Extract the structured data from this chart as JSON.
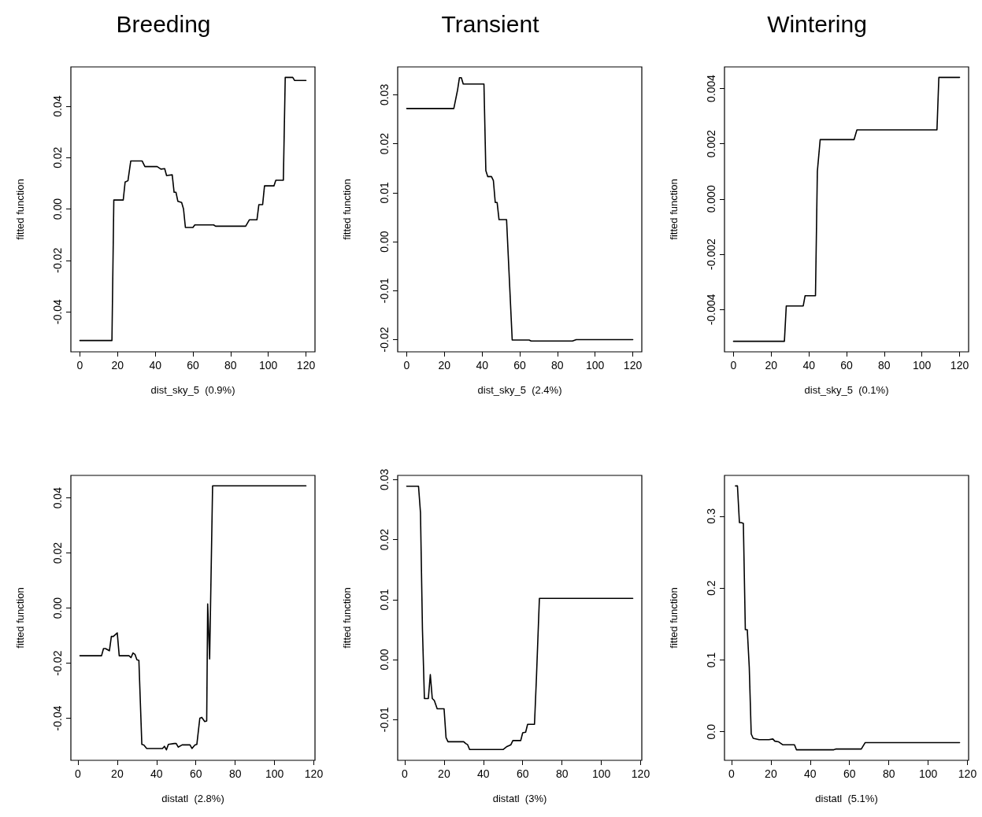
{
  "chart_data": [
    {
      "type": "line",
      "title": "Breeding",
      "xlabel": "dist_sky_5  (0.9%)",
      "ylabel": "fitted function",
      "color": "#000000",
      "line_style": "solid",
      "x": [
        0,
        17,
        18,
        23,
        24,
        25.5,
        27,
        33,
        34.5,
        41,
        43,
        45,
        46,
        49,
        50,
        51,
        52,
        54,
        55,
        56,
        60,
        61,
        71,
        72,
        88,
        90,
        94,
        95,
        97,
        98,
        103,
        104,
        108,
        109,
        113,
        114,
        120
      ],
      "values": [
        -0.0512,
        -0.0512,
        0.0035,
        0.0035,
        0.0105,
        0.011,
        0.0187,
        0.0187,
        0.0165,
        0.0165,
        0.0155,
        0.0157,
        0.013,
        0.0133,
        0.0065,
        0.0065,
        0.003,
        0.0025,
        0.0,
        -0.0072,
        -0.0072,
        -0.0062,
        -0.0062,
        -0.0067,
        -0.0067,
        -0.0042,
        -0.0042,
        0.0017,
        0.0017,
        0.009,
        0.009,
        0.0112,
        0.0112,
        0.0512,
        0.0512,
        0.05,
        0.05
      ],
      "xlim": [
        -4.8,
        124.8
      ],
      "xticks": [
        0,
        20,
        40,
        60,
        80,
        100,
        120
      ],
      "ylim": [
        -0.0556,
        0.0553
      ],
      "yticks": [
        {
          "value": -0.04,
          "label": "-0.04"
        },
        {
          "value": -0.02,
          "label": "-0.02"
        },
        {
          "value": 0,
          "label": "0.00"
        },
        {
          "value": 0.02,
          "label": "0.02"
        },
        {
          "value": 0.04,
          "label": "0.04"
        }
      ]
    },
    {
      "type": "line",
      "title": "Transient",
      "xlabel": "dist_sky_5  (2.4%)",
      "ylabel": "fitted function",
      "color": "#000000",
      "line_style": "solid",
      "x": [
        0,
        25,
        27,
        28,
        29,
        30,
        41,
        42,
        43,
        45,
        46,
        47,
        48,
        49,
        53,
        56,
        65,
        66,
        88,
        90,
        120
      ],
      "values": [
        0.0272,
        0.0272,
        0.031,
        0.0335,
        0.0335,
        0.0322,
        0.0322,
        0.0145,
        0.0133,
        0.0133,
        0.0125,
        0.008,
        0.008,
        0.0045,
        0.0045,
        -0.0201,
        -0.0201,
        -0.0203,
        -0.0203,
        -0.02,
        -0.02
      ],
      "xlim": [
        -4.8,
        124.8
      ],
      "xticks": [
        0,
        20,
        40,
        60,
        80,
        100,
        120
      ],
      "ylim": [
        -0.0225,
        0.0357
      ],
      "yticks": [
        {
          "value": -0.02,
          "label": "-0.02"
        },
        {
          "value": -0.01,
          "label": "-0.01"
        },
        {
          "value": 0,
          "label": "0.00"
        },
        {
          "value": 0.01,
          "label": "0.01"
        },
        {
          "value": 0.02,
          "label": "0.02"
        },
        {
          "value": 0.03,
          "label": "0.03"
        }
      ]
    },
    {
      "type": "line",
      "title": "Wintering",
      "xlabel": "dist_sky_5  (0.1%)",
      "ylabel": "fitted function",
      "color": "#000000",
      "line_style": "solid",
      "x": [
        0,
        27,
        28,
        37,
        38,
        43.5,
        44.5,
        46,
        64,
        65.5,
        108,
        109,
        120
      ],
      "values": [
        -0.00515,
        -0.00515,
        -0.00387,
        -0.00387,
        -0.0035,
        -0.0035,
        0.001,
        0.00215,
        0.00215,
        0.0025,
        0.0025,
        0.0044,
        0.0044
      ],
      "xlim": [
        -4.8,
        124.8
      ],
      "xticks": [
        0,
        20,
        40,
        60,
        80,
        100,
        120
      ],
      "ylim": [
        -0.00553,
        0.00478
      ],
      "yticks": [
        {
          "value": -0.004,
          "label": "-0.004"
        },
        {
          "value": -0.002,
          "label": "-0.002"
        },
        {
          "value": 0,
          "label": "0.000"
        },
        {
          "value": 0.002,
          "label": "0.002"
        },
        {
          "value": 0.004,
          "label": "0.004"
        }
      ]
    },
    {
      "type": "line",
      "xlabel": "distatl  (2.8%)",
      "ylabel": "fitted function",
      "color": "#000000",
      "line_style": "solid",
      "x": [
        1,
        12,
        13,
        14,
        16,
        17,
        18,
        20,
        21,
        26,
        27,
        28,
        29,
        30,
        31,
        32.5,
        33.5,
        35,
        43,
        44,
        45,
        46,
        49,
        50,
        51,
        53,
        57,
        58,
        59.5,
        60.5,
        62,
        63,
        64.5,
        65.5,
        66,
        67,
        68.5,
        116
      ],
      "values": [
        -0.0173,
        -0.0173,
        -0.0147,
        -0.0147,
        -0.0155,
        -0.0103,
        -0.0103,
        -0.009,
        -0.0173,
        -0.0173,
        -0.018,
        -0.0163,
        -0.0168,
        -0.0188,
        -0.019,
        -0.0495,
        -0.0497,
        -0.051,
        -0.051,
        -0.0502,
        -0.0515,
        -0.0495,
        -0.0492,
        -0.0492,
        -0.0505,
        -0.0497,
        -0.0497,
        -0.051,
        -0.0497,
        -0.0495,
        -0.04,
        -0.0397,
        -0.0412,
        -0.041,
        0.0015,
        -0.0185,
        0.0444,
        0.0444
      ],
      "xlim": [
        -3.6,
        120.6
      ],
      "xticks": [
        0,
        20,
        40,
        60,
        80,
        100,
        120
      ],
      "ylim": [
        -0.0553,
        0.0482
      ],
      "yticks": [
        {
          "value": -0.04,
          "label": "-0.04"
        },
        {
          "value": -0.02,
          "label": "-0.02"
        },
        {
          "value": 0,
          "label": "0.00"
        },
        {
          "value": 0.02,
          "label": "0.02"
        },
        {
          "value": 0.04,
          "label": "0.04"
        }
      ]
    },
    {
      "type": "line",
      "xlabel": "distatl  (3%)",
      "ylabel": "fitted function",
      "color": "#000000",
      "line_style": "solid",
      "x": [
        1,
        7,
        8,
        9,
        10,
        12,
        13,
        14,
        15,
        16.5,
        20,
        21,
        22,
        30,
        31,
        32,
        33,
        50,
        52,
        54,
        55,
        59,
        60,
        61.5,
        62.5,
        66,
        67,
        68.5,
        116
      ],
      "values": [
        0.0289,
        0.0289,
        0.0245,
        0.005,
        -0.0065,
        -0.0065,
        -0.0025,
        -0.0065,
        -0.0068,
        -0.0082,
        -0.0082,
        -0.013,
        -0.0137,
        -0.0137,
        -0.014,
        -0.0142,
        -0.015,
        -0.015,
        -0.0145,
        -0.0142,
        -0.0135,
        -0.0135,
        -0.0122,
        -0.0121,
        -0.0108,
        -0.0108,
        -0.003,
        0.0102,
        0.0102
      ],
      "xlim": [
        -3.6,
        120.6
      ],
      "xticks": [
        0,
        20,
        40,
        60,
        80,
        100,
        120
      ],
      "ylim": [
        -0.0168,
        0.0307
      ],
      "yticks": [
        {
          "value": -0.01,
          "label": "-0.01"
        },
        {
          "value": 0,
          "label": "0.00"
        },
        {
          "value": 0.01,
          "label": "0.01"
        },
        {
          "value": 0.02,
          "label": "0.02"
        },
        {
          "value": 0.03,
          "label": "0.03"
        }
      ]
    },
    {
      "type": "line",
      "xlabel": "distatl  (5.1%)",
      "ylabel": "fitted function",
      "color": "#000000",
      "line_style": "solid",
      "x": [
        2,
        3,
        4,
        5,
        6,
        7,
        8,
        9,
        10,
        11,
        14,
        19,
        21,
        22,
        24,
        26,
        32,
        33,
        52,
        53,
        66,
        68,
        116
      ],
      "values": [
        0.342,
        0.342,
        0.291,
        0.291,
        0.29,
        0.142,
        0.142,
        0.09,
        -0.003,
        -0.009,
        -0.011,
        -0.011,
        -0.01,
        -0.013,
        -0.014,
        -0.018,
        -0.018,
        -0.025,
        -0.025,
        -0.024,
        -0.024,
        -0.015,
        -0.015
      ],
      "xlim": [
        -3.6,
        120.6
      ],
      "xticks": [
        0,
        20,
        40,
        60,
        80,
        100,
        120
      ],
      "ylim": [
        -0.0397,
        0.3567
      ],
      "yticks": [
        {
          "value": 0,
          "label": "0.0"
        },
        0.1,
        0.2,
        0.3
      ]
    }
  ]
}
